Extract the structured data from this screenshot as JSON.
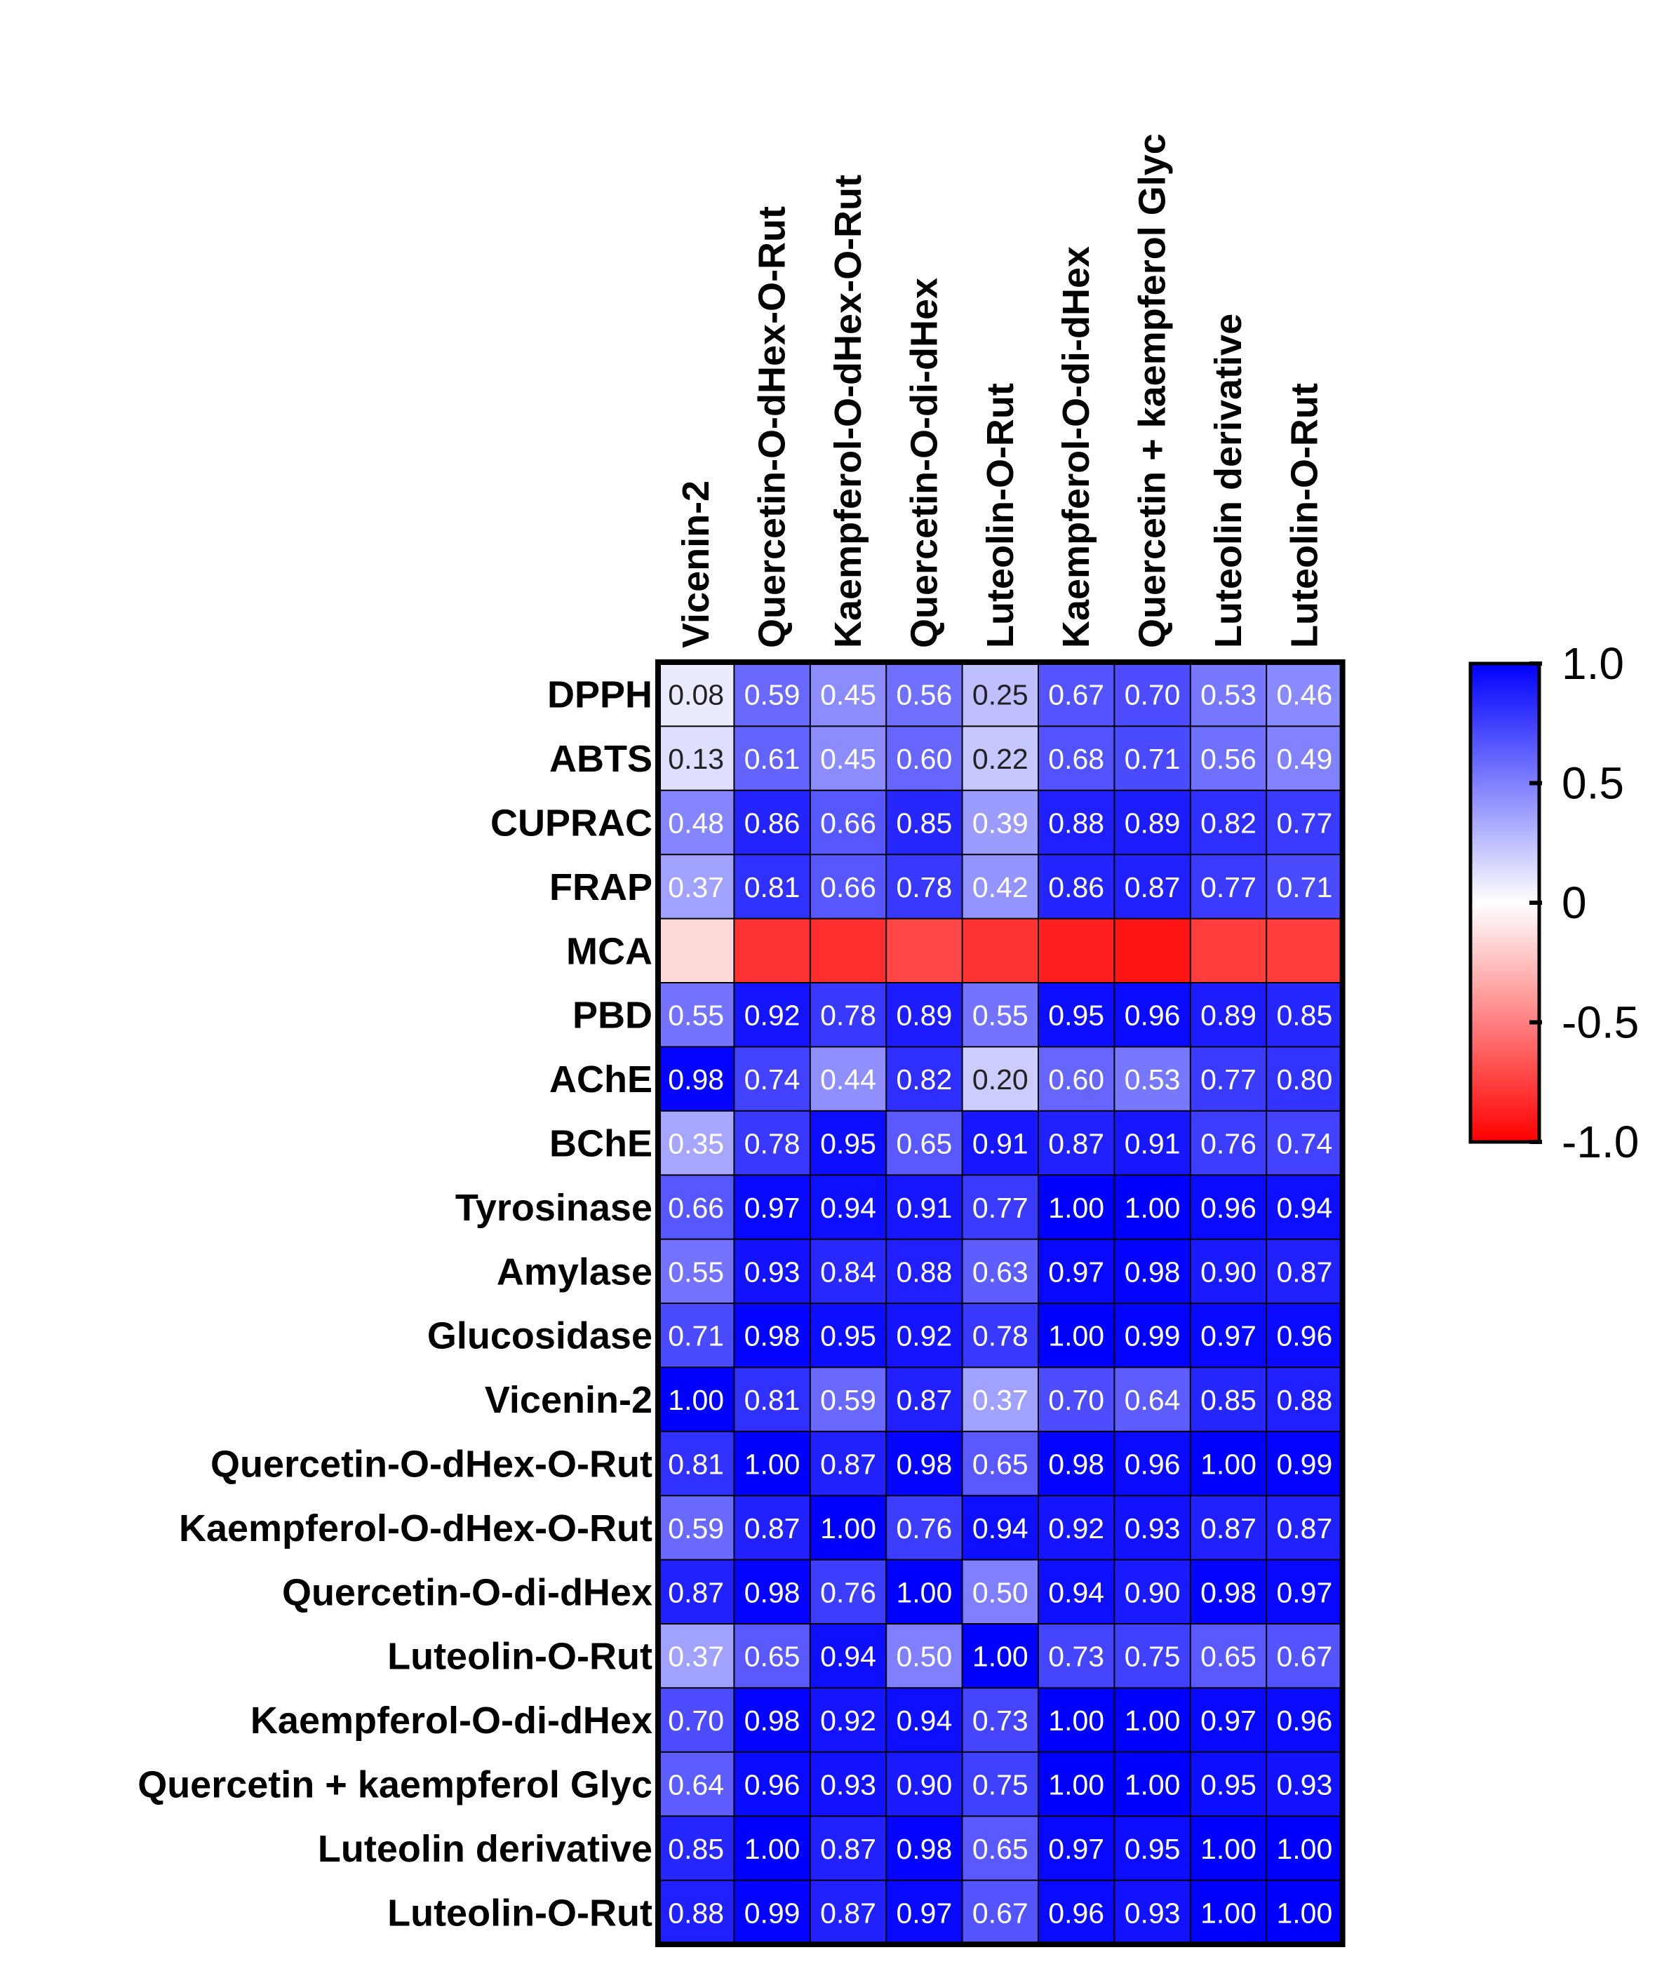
{
  "chart_data": {
    "type": "heatmap",
    "title": "",
    "columns": [
      "Vicenin-2",
      "Quercetin-O-dHex-O-Rut",
      "Kaempferol-O-dHex-O-Rut",
      "Quercetin-O-di-dHex",
      "Luteolin-O-Rut",
      "Kaempferol-O-di-dHex",
      "Quercetin + kaempferol Glyc",
      "Luteolin derivative",
      "Luteolin-O-Rut"
    ],
    "rows": [
      "DPPH",
      "ABTS",
      "CUPRAC",
      "FRAP",
      "MCA",
      "PBD",
      "AChE",
      "BChE",
      "Tyrosinase",
      "Amylase",
      "Glucosidase",
      "Vicenin-2",
      "Quercetin-O-dHex-O-Rut",
      "Kaempferol-O-dHex-O-Rut",
      "Quercetin-O-di-dHex",
      "Luteolin-O-Rut",
      "Kaempferol-O-di-dHex",
      "Quercetin + kaempferol Glyc",
      "Luteolin derivative",
      "Luteolin-O-Rut"
    ],
    "values": [
      [
        "0.08",
        "0.59",
        "0.45",
        "0.56",
        "0.25",
        "0.67",
        "0.70",
        "0.53",
        "0.46"
      ],
      [
        "0.13",
        "0.61",
        "0.45",
        "0.60",
        "0.22",
        "0.68",
        "0.71",
        "0.56",
        "0.49"
      ],
      [
        "0.48",
        "0.86",
        "0.66",
        "0.85",
        "0.39",
        "0.88",
        "0.89",
        "0.82",
        "0.77"
      ],
      [
        "0.37",
        "0.81",
        "0.66",
        "0.78",
        "0.42",
        "0.86",
        "0.87",
        "0.77",
        "0.71"
      ],
      [
        null,
        null,
        null,
        null,
        null,
        null,
        null,
        null,
        null
      ],
      [
        "0.55",
        "0.92",
        "0.78",
        "0.89",
        "0.55",
        "0.95",
        "0.96",
        "0.89",
        "0.85"
      ],
      [
        "0.98",
        "0.74",
        "0.44",
        "0.82",
        "0.20",
        "0.60",
        "0.53",
        "0.77",
        "0.80"
      ],
      [
        "0.35",
        "0.78",
        "0.95",
        "0.65",
        "0.91",
        "0.87",
        "0.91",
        "0.76",
        "0.74"
      ],
      [
        "0.66",
        "0.97",
        "0.94",
        "0.91",
        "0.77",
        "1.00",
        "1.00",
        "0.96",
        "0.94"
      ],
      [
        "0.55",
        "0.93",
        "0.84",
        "0.88",
        "0.63",
        "0.97",
        "0.98",
        "0.90",
        "0.87"
      ],
      [
        "0.71",
        "0.98",
        "0.95",
        "0.92",
        "0.78",
        "1.00",
        "0.99",
        "0.97",
        "0.96"
      ],
      [
        "1.00",
        "0.81",
        "0.59",
        "0.87",
        "0.37",
        "0.70",
        "0.64",
        "0.85",
        "0.88"
      ],
      [
        "0.81",
        "1.00",
        "0.87",
        "0.98",
        "0.65",
        "0.98",
        "0.96",
        "1.00",
        "0.99"
      ],
      [
        "0.59",
        "0.87",
        "1.00",
        "0.76",
        "0.94",
        "0.92",
        "0.93",
        "0.87",
        "0.87"
      ],
      [
        "0.87",
        "0.98",
        "0.76",
        "1.00",
        "0.50",
        "0.94",
        "0.90",
        "0.98",
        "0.97"
      ],
      [
        "0.37",
        "0.65",
        "0.94",
        "0.50",
        "1.00",
        "0.73",
        "0.75",
        "0.65",
        "0.67"
      ],
      [
        "0.70",
        "0.98",
        "0.92",
        "0.94",
        "0.73",
        "1.00",
        "1.00",
        "0.97",
        "0.96"
      ],
      [
        "0.64",
        "0.96",
        "0.93",
        "0.90",
        "0.75",
        "1.00",
        "1.00",
        "0.95",
        "0.93"
      ],
      [
        "0.85",
        "1.00",
        "0.87",
        "0.98",
        "0.65",
        "0.97",
        "0.95",
        "1.00",
        "1.00"
      ],
      [
        "0.88",
        "0.99",
        "0.87",
        "0.97",
        "0.67",
        "0.96",
        "0.93",
        "1.00",
        "1.00"
      ]
    ],
    "mca_estimated_values": [
      -0.15,
      -0.8,
      -0.82,
      -0.72,
      -0.8,
      -0.88,
      -0.92,
      -0.76,
      -0.76
    ],
    "colorbar": {
      "range": [
        -1.0,
        1.0
      ],
      "ticks": [
        "1.0",
        "0.5",
        "0",
        "-0.5",
        "-1.0"
      ],
      "tick_values": [
        1.0,
        0.5,
        0,
        -0.5,
        -1.0
      ],
      "low_color": "#ff0000",
      "mid_color": "#ffffff",
      "high_color": "#0000ff"
    }
  }
}
